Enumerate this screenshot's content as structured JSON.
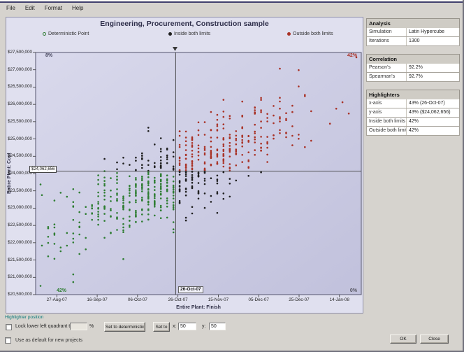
{
  "window": {
    "menu": [
      "File",
      "Edit",
      "Format",
      "Help"
    ]
  },
  "chart": {
    "title": "Engineering, Procurement, Construction sample",
    "legend": [
      {
        "label": "Deterministic Point",
        "marker": "circle-outline",
        "color": "#2e7d32"
      },
      {
        "label": "Inside both limits",
        "marker": "dot",
        "color": "#1f1f1f"
      },
      {
        "label": "Outside both limits",
        "marker": "dot",
        "color": "#a93226"
      }
    ]
  },
  "chart_data": {
    "type": "scatter",
    "title": "Engineering, Procurement, Construction sample",
    "xlabel": "Entire Plant: Finish",
    "ylabel": "Entire Plant: Cost",
    "x_ticks": [
      "27-Aug-07",
      "16-Sep-07",
      "06-Oct-07",
      "26-Oct-07",
      "15-Nov-07",
      "05-Dec-07",
      "25-Dec-07",
      "14-Jan-08"
    ],
    "y_ticks": [
      "$27,500,000",
      "$27,000,000",
      "$26,500,000",
      "$26,000,000",
      "$25,500,000",
      "$25,000,000",
      "$24,500,000",
      "$24,000,000",
      "$23,500,000",
      "$23,000,000",
      "$22,500,000",
      "$22,000,000",
      "$21,500,000",
      "$21,000,000",
      "$20,500,000"
    ],
    "crosshair": {
      "x_label": "26-Oct-07",
      "y_label": "$24,062,656",
      "x_frac": 0.43,
      "y_frac_from_top": 0.49
    },
    "quadrant_labels": {
      "top_left": "8%",
      "top_right": "42%",
      "bottom_left": "42%",
      "bottom_right": "0%"
    },
    "point_colors": {
      "inside_both_limits": "#2e7d32",
      "outside_both_limits": "#a93226",
      "mixed": "#1f1f1f"
    },
    "distribution": {
      "n": 680,
      "seed": 987654321,
      "x_mean": 0.44,
      "x_sd": 0.17,
      "y_mean_from_top": 0.5,
      "y_sd": 0.14,
      "correlation": 0.78,
      "x_quantize_columns": 52
    },
    "legend_entries": [
      "Deterministic Point",
      "Inside both limits",
      "Outside both limits"
    ],
    "note": "Monte Carlo cost/schedule scatter (~1300 iterations); point cloud is a correlated bivariate sample classified against the crosshair highlighters"
  },
  "side_panel": {
    "groups": [
      {
        "title": "Analysis",
        "rows": [
          {
            "label": "Simulation",
            "value": "Latin Hypercube"
          },
          {
            "label": "Iterations",
            "value": "1300"
          }
        ]
      },
      {
        "title": "Correlation",
        "rows": [
          {
            "label": "Pearson's",
            "value": "92.2%"
          },
          {
            "label": "Spearman's",
            "value": "92.7%"
          }
        ]
      },
      {
        "title": "Highlighters",
        "rows": [
          {
            "label": "x-axis",
            "value": "43% (26-Oct-07)"
          },
          {
            "label": "y-axis",
            "value": "43% ($24,062,656)"
          },
          {
            "label": "Inside both limits",
            "value": "42%"
          },
          {
            "label": "Outside both limits",
            "value": "42%"
          }
        ]
      }
    ]
  },
  "controls": {
    "section_label": "Highlighter position",
    "lock_checkbox_label": "Lock lower left quadrant to",
    "lock_value": "",
    "percent_label": "%",
    "set_deterministic_label": "Set to deterministic",
    "set_to_label": "Set to",
    "x_label": "x:",
    "x_value": "50",
    "y_label": "y:",
    "y_value": "50"
  },
  "footer": {
    "default_checkbox_label": "Use as default for new projects",
    "ok_label": "OK",
    "close_label": "Close"
  }
}
